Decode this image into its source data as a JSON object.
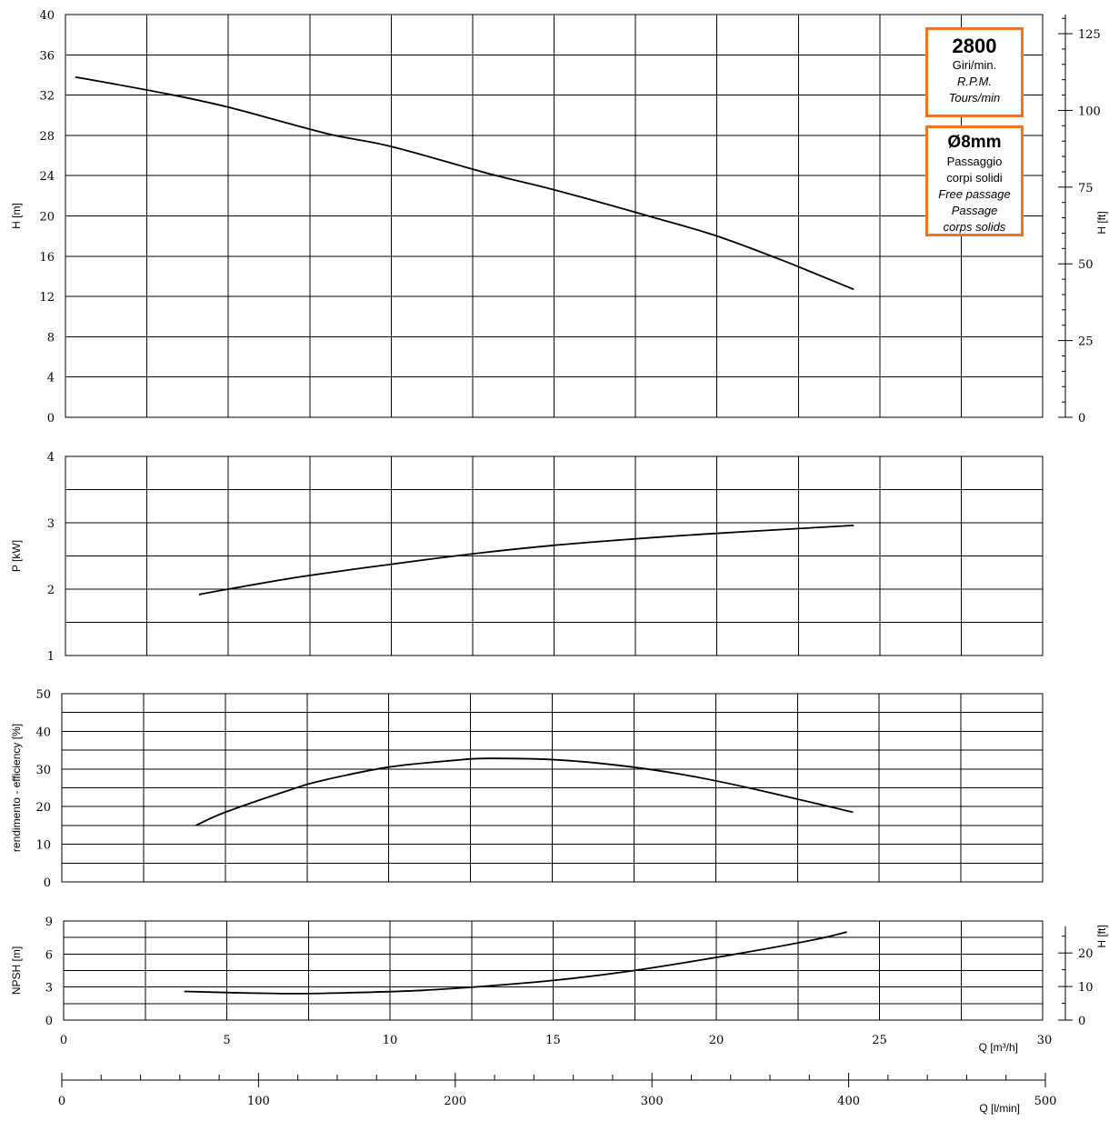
{
  "chart_data": [
    {
      "type": "line",
      "id": "head",
      "ylabel": "H [m]",
      "ylabel_right": "H [ft]",
      "ylim": [
        0,
        40
      ],
      "yticks": [
        0,
        4,
        8,
        12,
        16,
        20,
        24,
        28,
        32,
        36,
        40
      ],
      "yticks_right": [
        0,
        25,
        50,
        75,
        100,
        125
      ],
      "xlim": [
        0,
        30
      ],
      "series": [
        {
          "x": [
            0.3,
            3,
            5,
            8,
            10,
            13,
            15,
            18,
            20,
            22,
            24.2
          ],
          "y": [
            33.8,
            32.2,
            30.8,
            28.2,
            26.9,
            24.2,
            22.6,
            19.9,
            18.0,
            15.6,
            12.7
          ]
        }
      ]
    },
    {
      "type": "line",
      "id": "power",
      "ylabel": "P [kW]",
      "ylim": [
        1,
        4
      ],
      "yticks": [
        1,
        2,
        3,
        4
      ],
      "xlim": [
        0,
        30
      ],
      "series": [
        {
          "x": [
            4.1,
            5,
            7,
            9,
            11,
            13,
            15,
            17,
            19,
            21,
            24.2
          ],
          "y": [
            1.92,
            2.0,
            2.17,
            2.31,
            2.44,
            2.56,
            2.66,
            2.74,
            2.81,
            2.87,
            2.96
          ]
        }
      ]
    },
    {
      "type": "line",
      "id": "efficiency",
      "ylabel": "rendimento - efficiency  [%]",
      "ylim": [
        0,
        50
      ],
      "yticks": [
        0,
        10,
        20,
        30,
        40,
        50
      ],
      "xlim": [
        0,
        30
      ],
      "series": [
        {
          "x": [
            4.1,
            5,
            7,
            8,
            10,
            12,
            13,
            15,
            17,
            19,
            21,
            24.2
          ],
          "y": [
            15.0,
            18.5,
            24.5,
            27.0,
            30.5,
            32.3,
            32.8,
            32.5,
            31.0,
            28.5,
            25.0,
            18.5
          ]
        }
      ]
    },
    {
      "type": "line",
      "id": "npsh",
      "ylabel": "NPSH  [m]",
      "ylabel_right": "H [ft]",
      "ylim": [
        0,
        9
      ],
      "yticks": [
        0,
        3,
        6,
        9
      ],
      "yticks_right": [
        0,
        10,
        20
      ],
      "xlim": [
        0,
        30
      ],
      "xticks": [
        0,
        5,
        10,
        15,
        20,
        25,
        30
      ],
      "xlabel": "Q [m³/h]",
      "xlabel2": "Q [l/min]",
      "xticks2": [
        0,
        100,
        200,
        300,
        400,
        500
      ],
      "series": [
        {
          "x": [
            3.7,
            5,
            7,
            9,
            11,
            13,
            15,
            17,
            19,
            21,
            23,
            24.0
          ],
          "y": [
            2.6,
            2.5,
            2.4,
            2.5,
            2.7,
            3.1,
            3.6,
            4.3,
            5.2,
            6.2,
            7.3,
            8.0
          ]
        }
      ]
    }
  ],
  "rpm_box": {
    "value": "2800",
    "line1": "Giri/min.",
    "line2": "R.P.M.",
    "line3": "Tours/min"
  },
  "passage_box": {
    "value": "Ø8mm",
    "line1": "Passaggio",
    "line2": "corpi solidi",
    "line3": "Free passage",
    "line4": "Passage",
    "line5": "corps solids"
  },
  "colors": {
    "box_border": "#ee7420"
  }
}
